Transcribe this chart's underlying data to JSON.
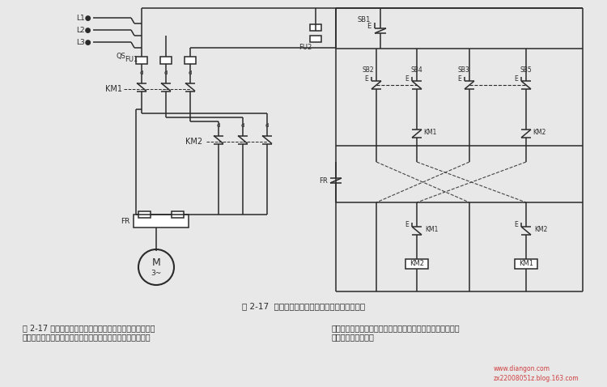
{
  "bg_color": "#e8e8e8",
  "line_color": "#2a2a2a",
  "title": "图 2-17  接触器与按钮双重连锁可逆运行控制线路",
  "caption_left": "图 2-17 所示为一种可逆点动、可逆运行的混合控制线路，\n该线路能控制电动机正反向点动断续运行，以及正反向连续运",
  "caption_right": "行，线路还设置有双按钮和接触器辅触点双重联锁机构，故操\n作方便，工作可靠。",
  "watermark1": "www.diangon.com",
  "watermark2": "zx22008051z.blog.163.com"
}
